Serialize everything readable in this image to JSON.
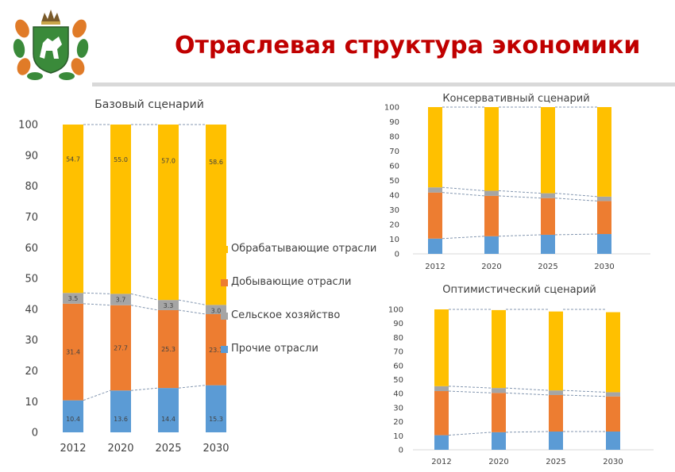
{
  "header": {
    "title": "Отраслевая структура экономики"
  },
  "colors": {
    "title": "#c00000",
    "manufacturing": "#ffc000",
    "extraction": "#ed7d31",
    "agriculture": "#a5a5a5",
    "other": "#5b9bd5",
    "trend_line": "#8497b0",
    "emblem_green": "#3a8a3a",
    "emblem_orange": "#e07b28"
  },
  "icons": {
    "emblem": "tomsk-region-coat-of-arms-icon"
  },
  "legend": {
    "items": [
      {
        "label": "Обрабатывающие отрасли",
        "color": "#ffc000"
      },
      {
        "label": "Добывающие отрасли",
        "color": "#ed7d31"
      },
      {
        "label": "Сельское хозяйство",
        "color": "#a5a5a5"
      },
      {
        "label": "Прочие отрасли",
        "color": "#5b9bd5"
      }
    ]
  },
  "chart_data": [
    {
      "type": "bar",
      "stacked": true,
      "title": "Базовый сценарий",
      "categories": [
        "2012",
        "2020",
        "2025",
        "2030"
      ],
      "series": [
        {
          "name": "Прочие отрасли",
          "values": [
            10.4,
            13.6,
            14.4,
            15.3
          ]
        },
        {
          "name": "Добывающие отрасли",
          "values": [
            31.4,
            27.7,
            25.3,
            23.1
          ]
        },
        {
          "name": "Сельское хозяйство",
          "values": [
            3.5,
            3.7,
            3.3,
            3.0
          ]
        },
        {
          "name": "Обрабатывающие отрасли",
          "values": [
            54.7,
            55.0,
            57.0,
            58.6
          ]
        }
      ],
      "data_labels": [
        [
          "10.4",
          "13.6",
          "14.4",
          "15.3"
        ],
        [
          "31.4",
          "27.7",
          "25.3",
          "23.1"
        ],
        [
          "3.5",
          "3.7",
          "3.3",
          "3.0"
        ],
        [
          "54.7",
          "55.0",
          "57.0",
          "58.6"
        ]
      ],
      "ylim": [
        0,
        100
      ],
      "yticks": [
        "0",
        "10",
        "20",
        "30",
        "40",
        "50",
        "60",
        "70",
        "80",
        "90",
        "100"
      ],
      "grid": false,
      "legend": "right"
    },
    {
      "type": "bar",
      "stacked": true,
      "title": "Консервативный сценарий",
      "categories": [
        "2012",
        "2020",
        "2025",
        "2030"
      ],
      "series": [
        {
          "name": "Прочие отрасли",
          "values": [
            10.4,
            12.0,
            13.0,
            13.5
          ]
        },
        {
          "name": "Добывающие отрасли",
          "values": [
            31.4,
            27.5,
            25.0,
            22.5
          ]
        },
        {
          "name": "Сельское хозяйство",
          "values": [
            3.5,
            3.5,
            3.3,
            3.0
          ]
        },
        {
          "name": "Обрабатывающие отрасли",
          "values": [
            54.7,
            57.0,
            58.7,
            61.0
          ]
        }
      ],
      "ylim": [
        0,
        100
      ],
      "yticks": [
        "0",
        "10",
        "20",
        "30",
        "40",
        "50",
        "60",
        "70",
        "80",
        "90",
        "100"
      ],
      "grid": false
    },
    {
      "type": "bar",
      "stacked": true,
      "title": "Оптимистический  сценарий",
      "categories": [
        "2012",
        "2020",
        "2025",
        "2030"
      ],
      "series": [
        {
          "name": "Прочие отрасли",
          "values": [
            10.4,
            12.5,
            13.0,
            13.0
          ]
        },
        {
          "name": "Добывающие отрасли",
          "values": [
            31.4,
            28.0,
            26.0,
            25.0
          ]
        },
        {
          "name": "Сельское хозяйство",
          "values": [
            3.5,
            3.5,
            3.3,
            3.0
          ]
        },
        {
          "name": "Обрабатывающие отрасли",
          "values": [
            54.7,
            55.5,
            56.2,
            57.0
          ]
        }
      ],
      "ylim": [
        0,
        100
      ],
      "yticks": [
        "0",
        "10",
        "20",
        "30",
        "40",
        "50",
        "60",
        "70",
        "80",
        "90",
        "100"
      ],
      "grid": false
    }
  ]
}
